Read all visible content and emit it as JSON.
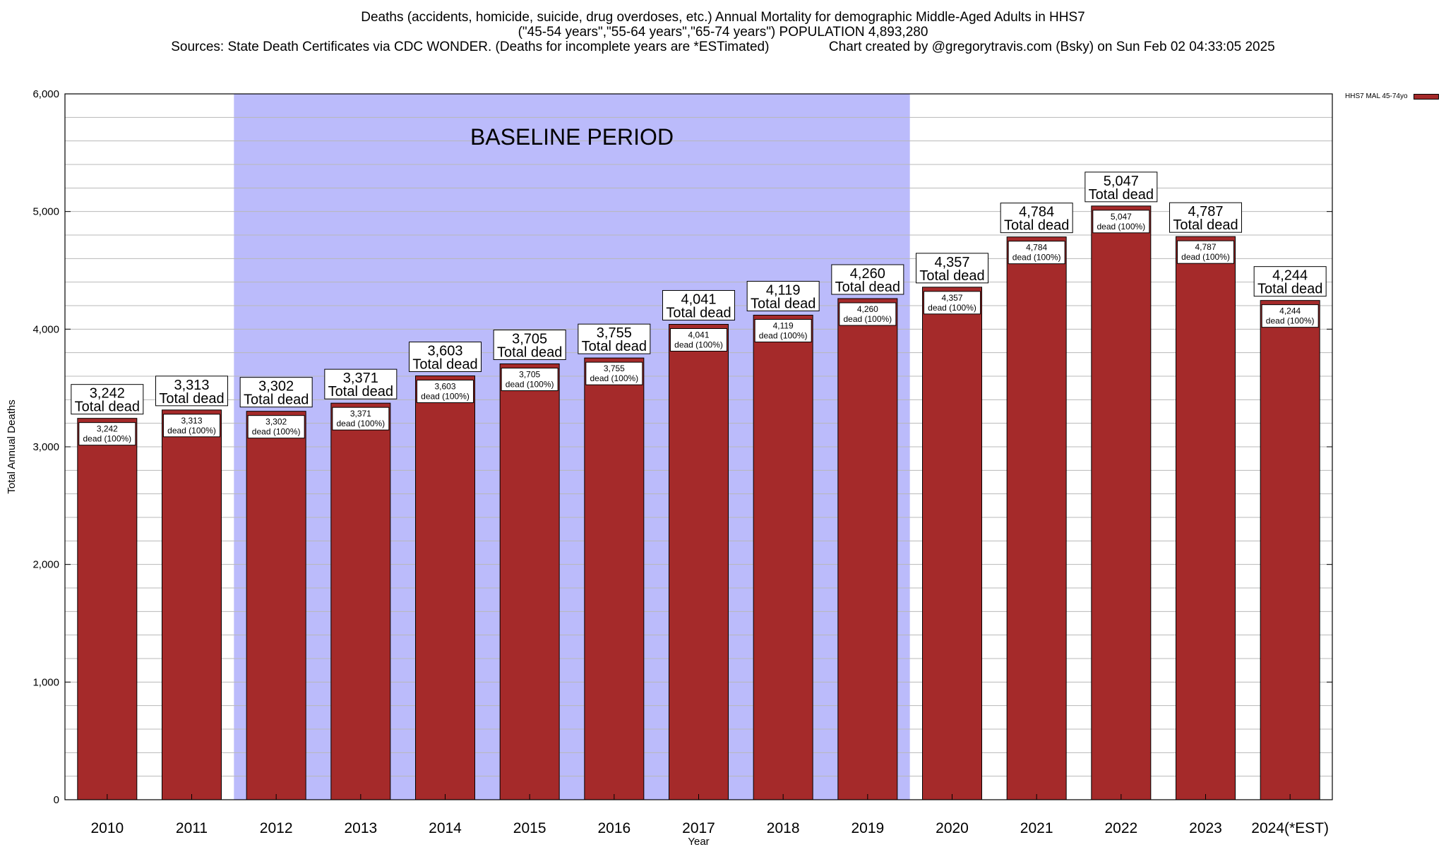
{
  "header": {
    "line1": "Deaths (accidents, homicide, suicide, drug overdoses, etc.) Annual Mortality for demographic Middle-Aged Adults in HHS7",
    "line2": "(\"45-54 years\",\"55-64 years\",\"65-74 years\") POPULATION 4,893,280",
    "line3_left": "Sources: State Death Certificates via CDC WONDER. (Deaths for incomplete years are *ESTimated)",
    "line3_right": "Chart created by @gregorytravis.com (Bsky) on Sun Feb 02 04:33:05 2025"
  },
  "legend": {
    "label": "HHS7 MAL 45-74yo"
  },
  "colors": {
    "bar": "#a52a2a",
    "baseline_band": "#bbbbfb",
    "grid": "#b8b8b8"
  },
  "chart_data": {
    "type": "bar",
    "xlabel": "Year",
    "ylabel": "Total Annual Deaths",
    "ylim": [
      0,
      6000
    ],
    "yticks": [
      0,
      1000,
      2000,
      3000,
      4000,
      5000,
      6000
    ],
    "ytick_labels": [
      "0",
      "1,000",
      "2,000",
      "3,000",
      "4,000",
      "5,000",
      "6,000"
    ],
    "grid": true,
    "legend_position": "top-right",
    "categories": [
      "2010",
      "2011",
      "2012",
      "2013",
      "2014",
      "2015",
      "2016",
      "2017",
      "2018",
      "2019",
      "2020",
      "2021",
      "2022",
      "2023",
      "2024(*EST)"
    ],
    "series": [
      {
        "name": "HHS7 MAL 45-74yo",
        "values": [
          3242,
          3313,
          3302,
          3371,
          3603,
          3705,
          3755,
          4041,
          4119,
          4260,
          4357,
          4784,
          5047,
          4787,
          4244
        ]
      }
    ],
    "value_labels": [
      "3,242",
      "3,313",
      "3,302",
      "3,371",
      "3,603",
      "3,705",
      "3,755",
      "4,041",
      "4,119",
      "4,260",
      "4,357",
      "4,784",
      "5,047",
      "4,787",
      "4,244"
    ],
    "total_label_suffix": "Total dead",
    "inner_label_suffix": "dead (100%)",
    "baseline_period": {
      "label": "BASELINE PERIOD",
      "start": "2012",
      "end": "2019"
    }
  }
}
